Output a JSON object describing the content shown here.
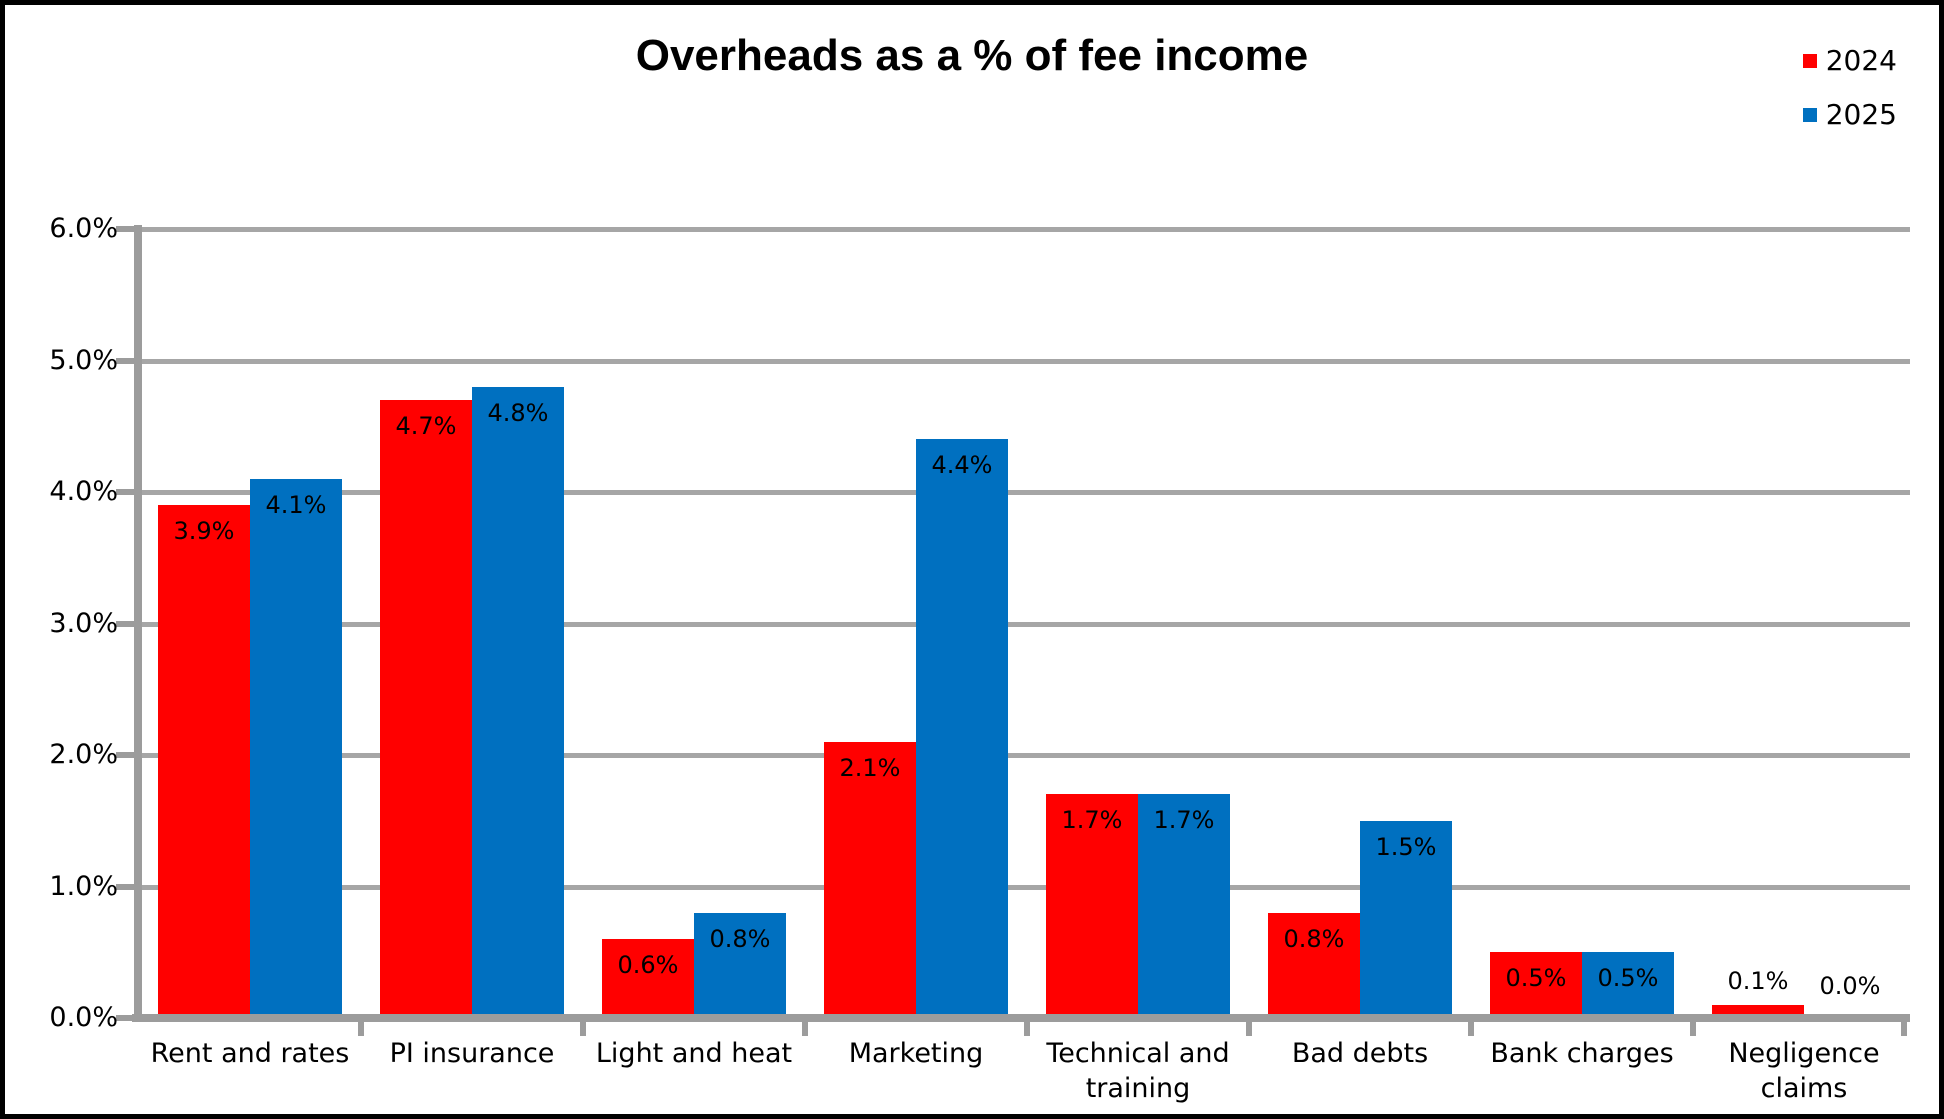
{
  "title": "Overheads as a % of fee income",
  "chart_data": {
    "type": "bar",
    "title": "Overheads as a % of fee income",
    "categories": [
      "Rent and rates",
      "PI insurance",
      "Light and heat",
      "Marketing",
      "Technical and training",
      "Bad debts",
      "Bank charges",
      "Negligence claims"
    ],
    "series": [
      {
        "name": "2024",
        "color": "#FF0000",
        "values": [
          3.9,
          4.7,
          0.6,
          2.1,
          1.7,
          0.8,
          0.5,
          0.1
        ]
      },
      {
        "name": "2025",
        "color": "#0070C0",
        "values": [
          4.1,
          4.8,
          0.8,
          4.4,
          1.7,
          1.5,
          0.5,
          0.0
        ]
      }
    ],
    "data_labels": [
      [
        "3.9%",
        "4.7%",
        "0.6%",
        "2.1%",
        "1.7%",
        "0.8%",
        "0.5%",
        "0.1%"
      ],
      [
        "4.1%",
        "4.8%",
        "0.8%",
        "4.4%",
        "1.7%",
        "1.5%",
        "0.5%",
        "0.0%"
      ]
    ],
    "xlabel": "",
    "ylabel": "",
    "ylim": [
      0,
      6
    ],
    "ytick_step": 1,
    "ytick_labels": [
      "0.0%",
      "1.0%",
      "2.0%",
      "3.0%",
      "4.0%",
      "5.0%",
      "6.0%"
    ],
    "grid": true,
    "legend_position": "top-right",
    "colors": {
      "grid": "#A6A6A6",
      "axis": "#9C9C9C",
      "text": "#000000",
      "background": "#FFFFFF",
      "frame_border": "#000000"
    }
  }
}
